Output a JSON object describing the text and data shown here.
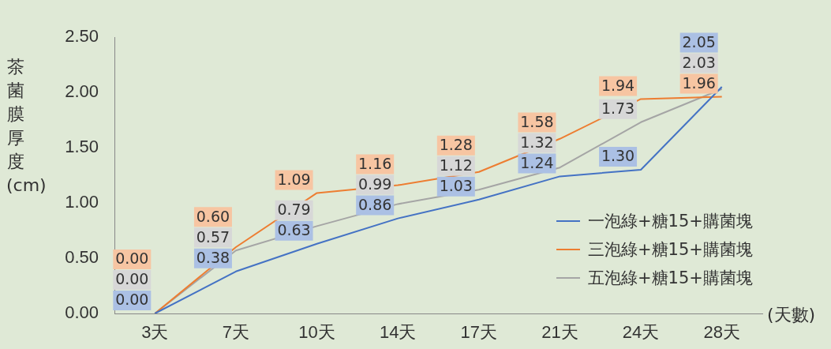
{
  "chart_data": {
    "type": "line",
    "ylabel": "茶菌膜厚度(cm)",
    "xlabel": "(天數)",
    "categories": [
      "3天",
      "7天",
      "10天",
      "14天",
      "17天",
      "21天",
      "24天",
      "28天"
    ],
    "series": [
      {
        "name": "一泡綠+糖15+購菌塊",
        "color": "#4472c4",
        "values": [
          0,
          0.38,
          0.63,
          0.86,
          1.03,
          1.24,
          1.3,
          2.05
        ],
        "value_labels": [
          "0.00",
          "0.38",
          "0.63",
          "0.86",
          "1.03",
          "1.24",
          "1.30",
          "2.05"
        ]
      },
      {
        "name": "三泡綠+糖15+購菌塊",
        "color": "#ed7d31",
        "values": [
          0,
          0.6,
          1.09,
          1.16,
          1.28,
          1.58,
          1.94,
          1.96
        ],
        "value_labels": [
          "0.00",
          "0.60",
          "1.09",
          "1.16",
          "1.28",
          "1.58",
          "1.94",
          "1.96"
        ]
      },
      {
        "name": "五泡綠+糖15+購菌塊",
        "color": "#a5a5a5",
        "values": [
          0,
          0.57,
          0.79,
          0.99,
          1.12,
          1.32,
          1.73,
          2.03
        ],
        "value_labels": [
          "0.00",
          "0.57",
          "0.79",
          "0.99",
          "1.12",
          "1.32",
          "1.73",
          "2.03"
        ]
      }
    ],
    "ylim": [
      0,
      2.5
    ],
    "yticks": [
      {
        "value": 0,
        "label": "0.00"
      },
      {
        "value": 0.5,
        "label": "0.50"
      },
      {
        "value": 1,
        "label": "1.00"
      },
      {
        "value": 1.5,
        "label": "1.50"
      },
      {
        "value": 2,
        "label": "2.00"
      },
      {
        "value": 2.5,
        "label": "2.50"
      }
    ],
    "grid": false,
    "legend": "bottom right",
    "marker": "none",
    "line_style": "solid"
  }
}
